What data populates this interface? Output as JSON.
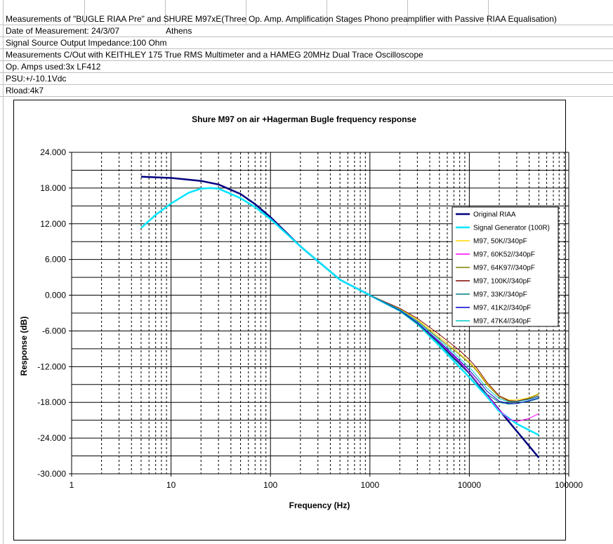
{
  "sheet": {
    "rows": [
      "Measurements of \"BUGLE RIAA Pre\" and SHURE M97xE(Three Op. Amp.  Amplification Stages Phono preamplifier with Passive RIAA Equalisation)",
      "Date of Measurement: 24/3/07",
      "Signal Source Output Impedance:100 Ohm",
      "Measurements C/Out with KEITHLEY 175 True RMS Multimeter and a HAMEG 20MHz Dual Trace Oscilloscope",
      "Op. Amps used:3x LF412",
      "PSU:+/-10.1Vdc",
      "Rload:4k7"
    ],
    "location": "Athens"
  },
  "chart_data": {
    "type": "line",
    "title": "Shure M97 on air +Hagerman Bugle frequency response",
    "xlabel": "Frequency (Hz)",
    "ylabel": "Response (dB)",
    "xscale": "log",
    "xlim": [
      1,
      100000
    ],
    "ylim": [
      -30,
      24
    ],
    "xticks": [
      "1",
      "10",
      "100",
      "1000",
      "10000",
      "100000"
    ],
    "yticks": [
      "24.000",
      "18.000",
      "12.000",
      "6.000",
      "0.000",
      "-6.000",
      "-12.000",
      "-18.000",
      "-24.000",
      "-30.000"
    ],
    "grid": true,
    "legend": "right",
    "series": [
      {
        "name": "Original RIAA",
        "color": "#000080",
        "width": 2.5,
        "x": [
          5,
          10,
          20,
          30,
          50,
          70,
          100,
          200,
          500,
          1000,
          2000,
          3000,
          5000,
          10000,
          20000,
          50000
        ],
        "y": [
          19.9,
          19.7,
          19.2,
          18.6,
          17.0,
          15.3,
          13.1,
          8.2,
          2.6,
          0.0,
          -2.6,
          -4.8,
          -8.2,
          -13.1,
          -19.3,
          -27.3
        ]
      },
      {
        "name": "Signal Generator (100R)",
        "color": "#00e5ff",
        "width": 2.5,
        "x": [
          5,
          7,
          10,
          15,
          20,
          25,
          30,
          50,
          70,
          100,
          200,
          500,
          1000,
          2000,
          3000,
          5000,
          10000,
          15000,
          20000,
          30000,
          50000
        ],
        "y": [
          11.3,
          13.5,
          15.4,
          17.2,
          17.9,
          18.0,
          17.9,
          16.3,
          14.8,
          12.8,
          8.2,
          2.6,
          0.0,
          -2.6,
          -4.8,
          -8.5,
          -13.8,
          -17.0,
          -19.5,
          -21.6,
          -23.5
        ]
      },
      {
        "name": "M97, 50K//340pF",
        "color": "#ffd700",
        "width": 1,
        "x": [
          1000,
          2000,
          3000,
          5000,
          8000,
          10000,
          12000,
          15000,
          20000,
          25000,
          30000,
          40000,
          50000
        ],
        "y": [
          0.0,
          -2.3,
          -4.1,
          -7.0,
          -9.8,
          -11.2,
          -12.6,
          -14.8,
          -16.9,
          -17.6,
          -17.6,
          -17.2,
          -16.5
        ]
      },
      {
        "name": "M97, 60K52//340pF",
        "color": "#ff00ff",
        "width": 1,
        "x": [
          1000,
          2000,
          3000,
          5000,
          8000,
          10000,
          12000,
          15000,
          20000,
          25000,
          30000,
          40000,
          50000
        ],
        "y": [
          0.0,
          -2.5,
          -4.6,
          -7.9,
          -11.2,
          -13.0,
          -14.6,
          -16.7,
          -19.3,
          -20.8,
          -21.2,
          -20.7,
          -19.9
        ]
      },
      {
        "name": "M97, 64K97//340pF",
        "color": "#808000",
        "width": 1,
        "x": [
          1000,
          2000,
          3000,
          5000,
          8000,
          10000,
          12000,
          15000,
          20000,
          25000,
          30000,
          40000,
          50000
        ],
        "y": [
          0.0,
          -2.4,
          -4.3,
          -7.3,
          -10.0,
          -11.4,
          -12.8,
          -15.0,
          -17.1,
          -17.8,
          -17.8,
          -17.3,
          -16.6
        ]
      },
      {
        "name": "M97, 100K//340pF",
        "color": "#800000",
        "width": 1,
        "x": [
          1000,
          2000,
          3000,
          5000,
          8000,
          10000,
          12000,
          15000,
          20000,
          25000,
          30000,
          40000,
          50000
        ],
        "y": [
          0.0,
          -2.2,
          -3.9,
          -6.6,
          -9.3,
          -10.8,
          -12.3,
          -14.6,
          -16.9,
          -17.7,
          -17.8,
          -17.4,
          -16.9
        ]
      },
      {
        "name": "M97, 33K//340pF",
        "color": "#008080",
        "width": 1,
        "x": [
          1000,
          2000,
          3000,
          5000,
          8000,
          10000,
          12000,
          15000,
          20000,
          25000,
          30000,
          40000,
          50000
        ],
        "y": [
          0.0,
          -2.6,
          -4.8,
          -8.2,
          -11.6,
          -13.2,
          -14.8,
          -16.6,
          -18.0,
          -18.3,
          -18.2,
          -17.8,
          -17.4
        ]
      },
      {
        "name": "M97, 41K2//340pF",
        "color": "#0000cd",
        "width": 1,
        "x": [
          1000,
          2000,
          3000,
          5000,
          8000,
          10000,
          12000,
          15000,
          20000,
          25000,
          30000,
          40000,
          50000
        ],
        "y": [
          0.0,
          -2.5,
          -4.6,
          -7.8,
          -11.0,
          -12.6,
          -14.1,
          -16.1,
          -17.8,
          -18.2,
          -18.2,
          -17.7,
          -17.2
        ]
      },
      {
        "name": "M97, 47K4//340pF",
        "color": "#00c8c8",
        "width": 1,
        "x": [
          1000,
          2000,
          3000,
          5000,
          8000,
          10000,
          12000,
          15000,
          20000,
          25000,
          30000,
          40000,
          50000
        ],
        "y": [
          0.0,
          -2.4,
          -4.4,
          -7.5,
          -10.6,
          -12.1,
          -13.6,
          -15.6,
          -17.4,
          -17.9,
          -17.9,
          -17.5,
          -17.0
        ]
      }
    ]
  }
}
